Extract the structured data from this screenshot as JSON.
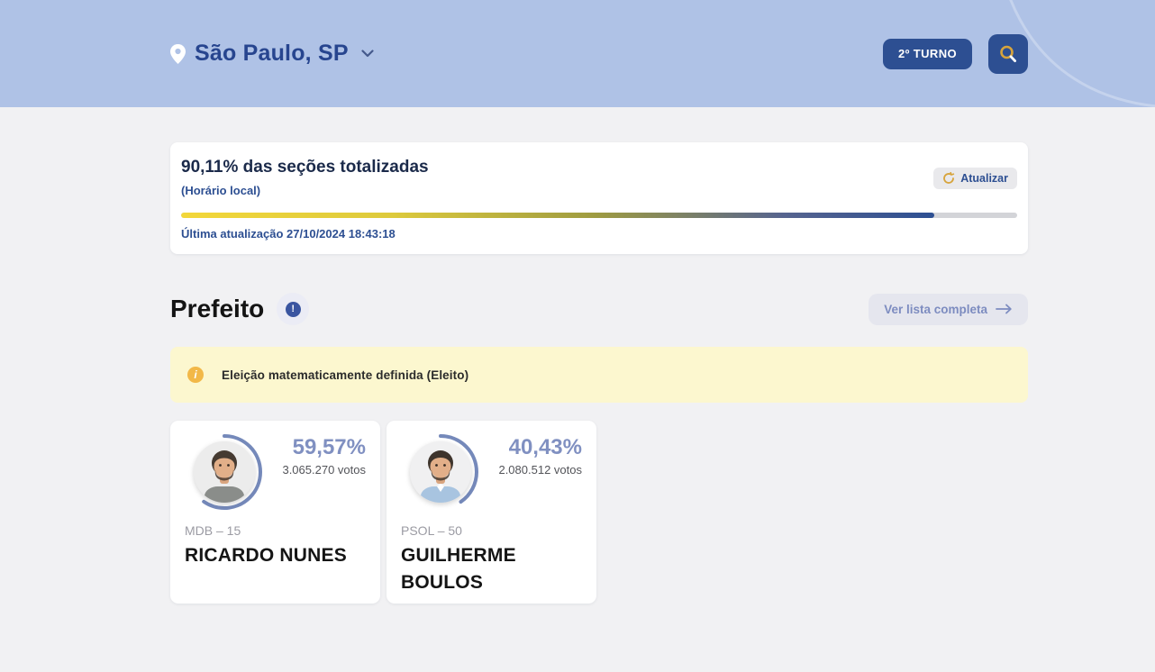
{
  "theme": {
    "header_bg": "#afc2e6",
    "primary_blue": "#2d4f92",
    "muted_blue": "#8090c1",
    "ring_blue": "#7589ba",
    "banner_bg": "#fcf7cf",
    "banner_icon": "#f2b848",
    "gold": "#d7a43c",
    "page_bg": "#f1f1f3"
  },
  "header": {
    "location_label": "São Paulo, SP",
    "round_button_label": "2º TURNO"
  },
  "totalization": {
    "title": "90,11% das seções totalizadas",
    "subtitle": "(Horário local)",
    "refresh_label": "Atualizar",
    "progress_percent": 90.11,
    "last_update": "Última atualização 27/10/2024 18:43:18"
  },
  "section": {
    "title": "Prefeito",
    "info_glyph": "!",
    "view_all_label": "Ver lista completa"
  },
  "alert": {
    "icon_glyph": "i",
    "message": "Eleição matematicamente definida (Eleito)"
  },
  "candidates": [
    {
      "percent_label": "59,57%",
      "percent_value": 59.57,
      "votes_label": "3.065.270 votos",
      "party_label": "MDB – 15",
      "name": "RICARDO NUNES"
    },
    {
      "percent_label": "40,43%",
      "percent_value": 40.43,
      "votes_label": "2.080.512 votos",
      "party_label": "PSOL – 50",
      "name": "GUILHERME BOULOS"
    }
  ]
}
